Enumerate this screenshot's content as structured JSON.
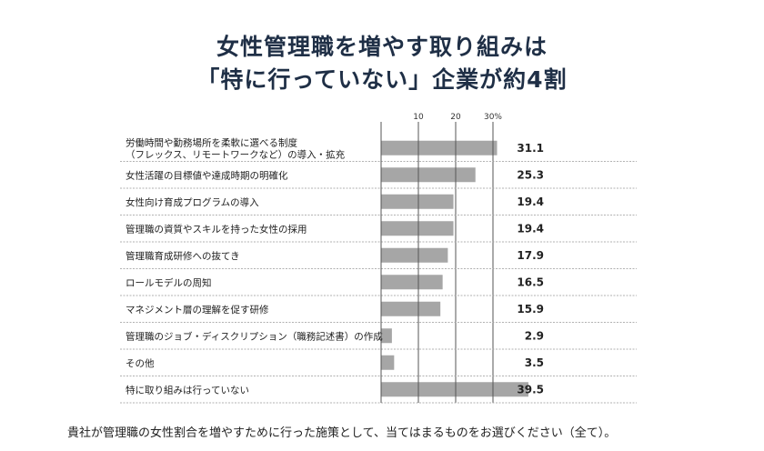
{
  "title_lines": [
    "女性管理職を増やす取り組みは",
    "「特に行っていない」企業が約4割"
  ],
  "footnote": "貴社が管理職の女性割合を増やすために行った施策として、当てはまるものをお選びください（全て）。",
  "colors": {
    "bar": "#a6a6a6",
    "title": "#1f2f46",
    "separator": "#999999",
    "gridline": "#555555"
  },
  "chart_data": {
    "type": "bar",
    "orientation": "horizontal",
    "title": "女性管理職を増やす取り組みは「特に行っていない」企業が約4割",
    "xlabel": "",
    "ylabel": "",
    "xlim": [
      0,
      40
    ],
    "ticks": [
      10,
      20,
      30
    ],
    "tick_labels": [
      "10",
      "20",
      "30%"
    ],
    "grid": true,
    "legend": "none",
    "categories": [
      [
        "労働時間や勤務場所を柔軟に選べる制度",
        "（フレックス、リモートワークなど）の導入・拡充"
      ],
      [
        "女性活躍の目標値や達成時期の明確化"
      ],
      [
        "女性向け育成プログラムの導入"
      ],
      [
        "管理職の資質やスキルを持った女性の採用"
      ],
      [
        "管理職育成研修への抜てき"
      ],
      [
        "ロールモデルの周知"
      ],
      [
        "マネジメント層の理解を促す研修"
      ],
      [
        "管理職のジョブ・ディスクリプション（職務記述書）の作成"
      ],
      [
        "その他"
      ],
      [
        "特に取り組みは行っていない"
      ]
    ],
    "values": [
      31.1,
      25.3,
      19.4,
      19.4,
      17.9,
      16.5,
      15.9,
      2.9,
      3.5,
      39.5
    ],
    "value_labels": [
      "31.1",
      "25.3",
      "19.4",
      "19.4",
      "17.9",
      "16.5",
      "15.9",
      "2.9",
      "3.5",
      "39.5"
    ]
  }
}
